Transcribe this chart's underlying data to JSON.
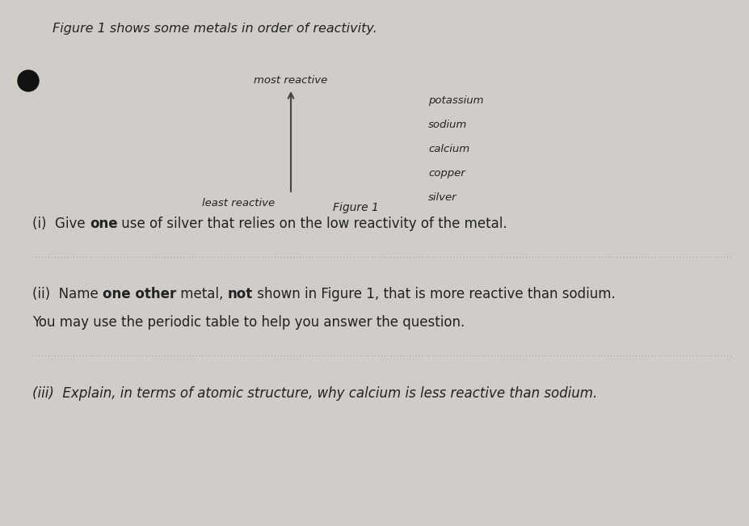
{
  "background_color": "#d0cdc8",
  "title_text": "Figure 1 shows some metals in order of reactivity.",
  "title_fontsize": 11.5,
  "metals": [
    "potassium",
    "sodium",
    "calcium",
    "copper",
    "silver"
  ],
  "metals_fontsize": 9.5,
  "most_reactive_label": "most reactive",
  "least_reactive_label": "least reactive",
  "figure1_label": "Figure 1",
  "q1_parts": [
    {
      "text": "(i)  Give ",
      "bold": false
    },
    {
      "text": "one",
      "bold": true
    },
    {
      "text": " use of silver that relies on the low reactivity of the metal.",
      "bold": false
    }
  ],
  "q2_parts": [
    {
      "text": "(ii)  Name ",
      "bold": false
    },
    {
      "text": "one other",
      "bold": true
    },
    {
      "text": " metal, ",
      "bold": false
    },
    {
      "text": "not",
      "bold": true
    },
    {
      "text": " shown in Figure 1, that is more reactive than sodium.",
      "bold": false
    }
  ],
  "q2_line2": "You may use the periodic table to help you answer the question.",
  "q3_text": "(iii)  Explain, in terms of atomic structure, why calcium is less reactive than sodium.",
  "text_color": "#222222",
  "arrow_color": "#444444",
  "dotline_color": "#999999",
  "label_fontsize": 9.5,
  "q_fontsize": 12.0,
  "q3_fontsize": 12.0
}
